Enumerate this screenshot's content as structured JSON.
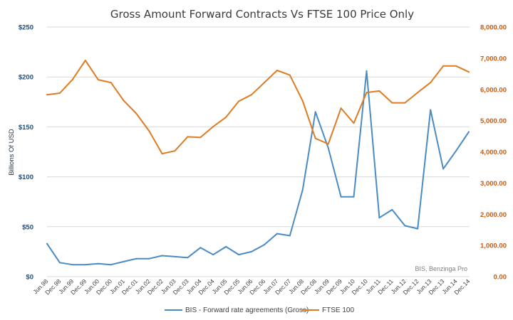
{
  "chart_data": {
    "type": "line",
    "title": "Gross Amount Forward Contracts Vs FTSE 100 Price Only",
    "ylabel": "Billions Of USD",
    "source_note": "BIS, Benzinga Pro",
    "categories": [
      "Jun.98",
      "Dec.98",
      "Jun.99",
      "Dec.99",
      "Jun.00",
      "Dec.00",
      "Jun.01",
      "Dec.01",
      "Jun.02",
      "Dec.02",
      "Jun.03",
      "Dec.03",
      "Jun.04",
      "Dec.04",
      "Jun.05",
      "Dec.05",
      "Jun.06",
      "Dec.06",
      "Jun.07",
      "Dec.07",
      "Jun.08",
      "Dec.08",
      "Jun.09",
      "Dec.09",
      "Jun.10",
      "Dec.10",
      "Jun.11",
      "Dec.11",
      "Jun.12",
      "Dec.12",
      "Jun.13",
      "Dec.13",
      "Jun.14",
      "Dec.14"
    ],
    "y_left": {
      "min": 0,
      "max": 250,
      "ticks": [
        0,
        50,
        100,
        150,
        200,
        250
      ],
      "tick_labels": [
        "$0",
        "$50",
        "$100",
        "$150",
        "$200",
        "$250"
      ]
    },
    "y_right": {
      "min": 0,
      "max": 8000,
      "ticks": [
        0,
        1000,
        2000,
        3000,
        4000,
        5000,
        6000,
        7000,
        8000
      ],
      "tick_labels": [
        "0.00",
        "1,000.00",
        "2,000.00",
        "3,000.00",
        "4,000.00",
        "5,000.00",
        "6,000.00",
        "7,000.00",
        "8,000.00"
      ]
    },
    "grid": "horizontal",
    "legend_position": "bottom",
    "series": [
      {
        "name": "BIS - Forward rate agreements (Gross)",
        "axis": "left",
        "color": "#4a8bc4",
        "values": [
          33,
          14,
          12,
          12,
          13,
          12,
          15,
          18,
          18,
          21,
          20,
          19,
          29,
          22,
          30,
          22,
          25,
          32,
          43,
          41,
          87,
          165,
          129,
          80,
          80,
          206,
          59,
          67,
          51,
          48,
          167,
          108,
          126,
          145
        ]
      },
      {
        "name": "FTSE 100",
        "axis": "right",
        "color": "#e07b22",
        "values": [
          5830,
          5880,
          6320,
          6930,
          6310,
          6220,
          5640,
          5220,
          4660,
          3940,
          4030,
          4480,
          4460,
          4810,
          5110,
          5620,
          5830,
          6220,
          6610,
          6460,
          5630,
          4430,
          4250,
          5400,
          4920,
          5900,
          5950,
          5570,
          5570,
          5900,
          6220,
          6750,
          6750,
          6560
        ]
      }
    ]
  }
}
